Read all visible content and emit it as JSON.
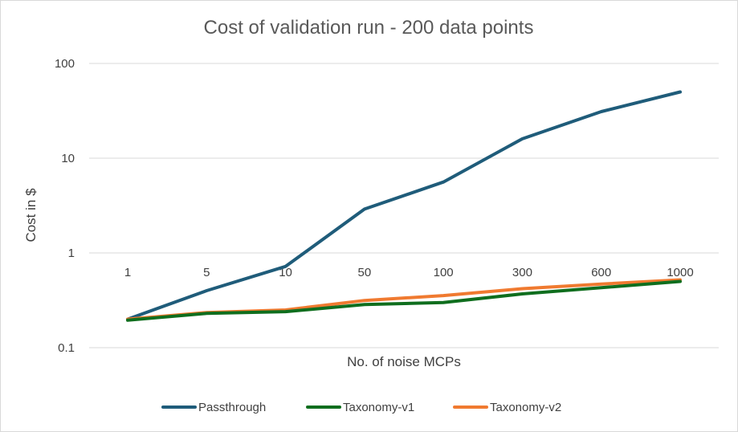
{
  "chart_data": {
    "type": "line",
    "title": "Cost of validation run - 200 data points",
    "xlabel": "No. of noise MCPs",
    "ylabel": "Cost in $",
    "yscale": "log",
    "ylim": [
      0.1,
      100
    ],
    "yticks": [
      {
        "value": 0.1,
        "label": "0.1"
      },
      {
        "value": 1,
        "label": "1"
      },
      {
        "value": 10,
        "label": "10"
      },
      {
        "value": 100,
        "label": "100"
      }
    ],
    "categories": [
      "1",
      "5",
      "10",
      "50",
      "100",
      "300",
      "600",
      "1000"
    ],
    "x_axis_crosses_at": 1,
    "gridlines": true,
    "legend_position": "bottom",
    "series": [
      {
        "name": "Passthrough",
        "color": "#1f5c7a",
        "values": [
          0.2,
          0.4,
          0.72,
          2.9,
          5.6,
          16,
          31,
          50
        ]
      },
      {
        "name": "Taxonomy-v1",
        "color": "#0f6e1e",
        "values": [
          0.195,
          0.23,
          0.24,
          0.285,
          0.3,
          0.37,
          0.43,
          0.5
        ]
      },
      {
        "name": "Taxonomy-v2",
        "color": "#f07a30",
        "values": [
          0.2,
          0.235,
          0.25,
          0.315,
          0.355,
          0.42,
          0.47,
          0.52
        ]
      }
    ]
  }
}
